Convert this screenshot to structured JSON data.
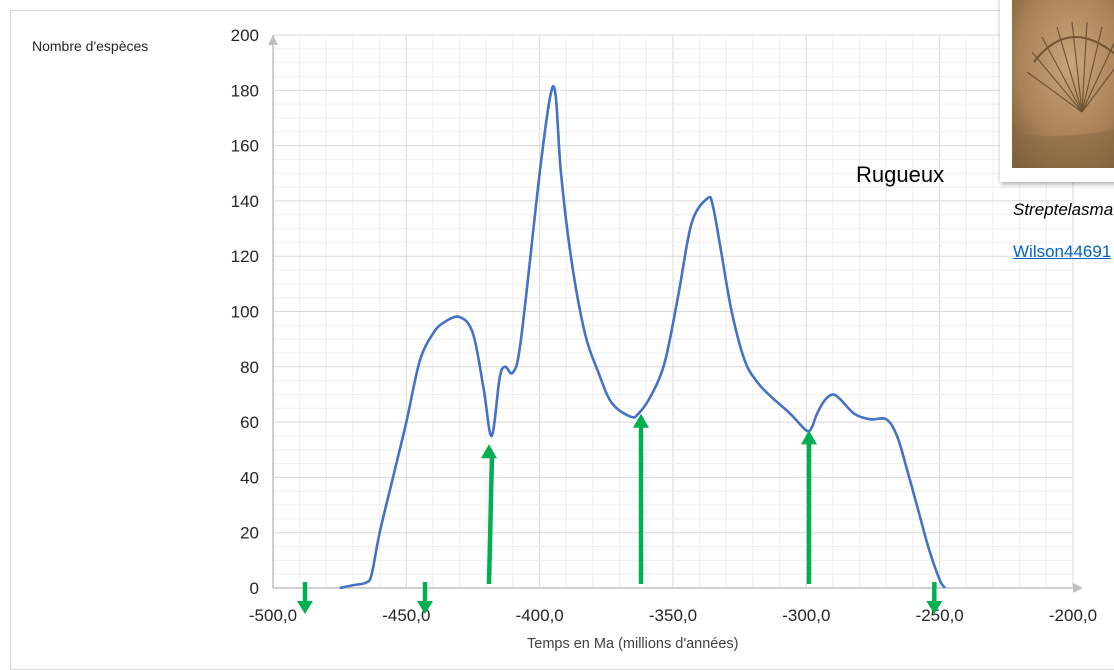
{
  "chart_data": {
    "type": "line",
    "ylabel": "Nombre d'espèces",
    "xlabel": "Temps en Ma (millions d'années)",
    "xlim": [
      -500,
      -200
    ],
    "ylim": [
      0,
      200
    ],
    "x_ticks": [
      "-500,0",
      "-450,0",
      "-400,0",
      "-350,0",
      "-300,0",
      "-250,0",
      "-200,0"
    ],
    "y_ticks": [
      "0",
      "20",
      "40",
      "60",
      "80",
      "100",
      "120",
      "140",
      "160",
      "180",
      "200"
    ],
    "grid": true,
    "series": [
      {
        "color": "#4472c4",
        "x": [
          -475,
          -470,
          -465,
          -463,
          -460,
          -455,
          -450,
          -445,
          -440,
          -436,
          -430,
          -425,
          -421,
          -418,
          -415,
          -413,
          -410,
          -407,
          -400,
          -396,
          -394,
          -392,
          -388,
          -383,
          -378,
          -373,
          -366,
          -363,
          -358,
          -353,
          -348,
          -343,
          -337,
          -335,
          -332,
          -328,
          -323,
          -318,
          -313,
          -306,
          -300,
          -298,
          -296,
          -293,
          -290,
          -287,
          -282,
          -276,
          -270,
          -266,
          -262,
          -258,
          -254,
          -250,
          -248
        ],
        "y": [
          0,
          1,
          2,
          5,
          20,
          40,
          60,
          82,
          92,
          96,
          98,
          92,
          72,
          55,
          76,
          80,
          78,
          90,
          150,
          178,
          178,
          150,
          118,
          92,
          78,
          67,
          62,
          63,
          70,
          82,
          106,
          132,
          141,
          138,
          122,
          100,
          82,
          74,
          69,
          63,
          57,
          58,
          63,
          68,
          70,
          68,
          63,
          61,
          61,
          55,
          42,
          28,
          14,
          3,
          0
        ]
      }
    ],
    "annotations": [
      {
        "type": "arrow-down",
        "x": -488
      },
      {
        "type": "arrow-down",
        "x": -443
      },
      {
        "type": "arrow-up",
        "x": -419
      },
      {
        "type": "arrow-up",
        "x": -362
      },
      {
        "type": "arrow-up",
        "x": -299
      },
      {
        "type": "arrow-down",
        "x": -252
      }
    ],
    "annotation_color": "#00b050"
  },
  "labels": {
    "rugueux": "Rugueux",
    "species": "Streptelasma",
    "author": "Wilson44691"
  }
}
